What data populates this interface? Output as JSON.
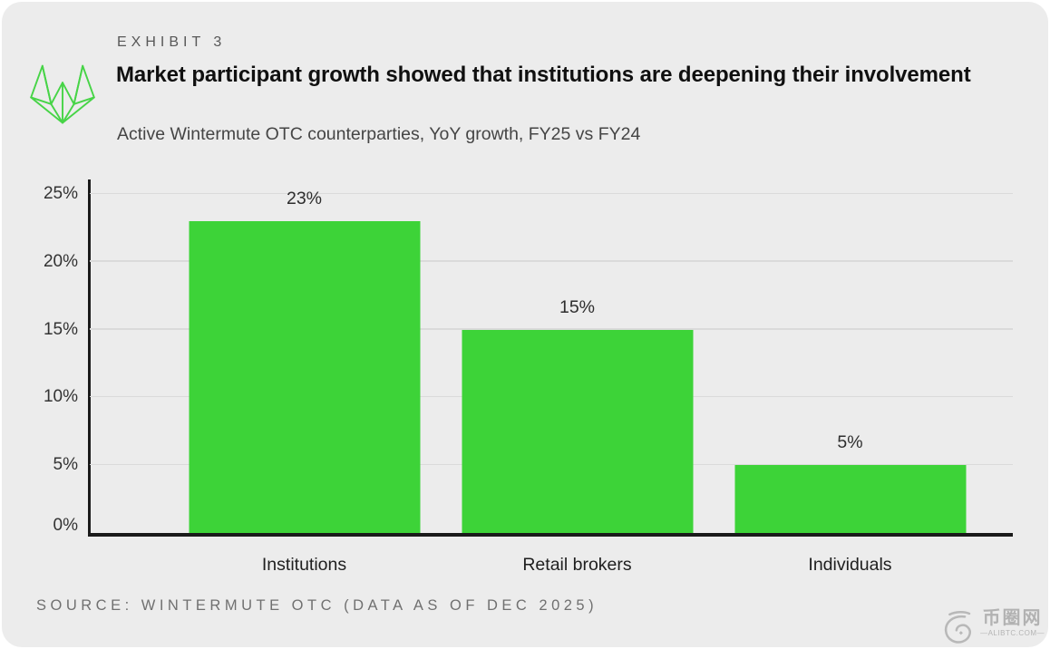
{
  "page": {
    "background": "#ffffff",
    "panel_background": "#ececec"
  },
  "header": {
    "exhibit_label": "EXHIBIT 3",
    "title": "Market participant growth showed that institutions are deepening their involvement",
    "subtitle": "Active Wintermute OTC counterparties, YoY growth, FY25 vs FY24",
    "logo_icon": "wintermute-logo"
  },
  "chart_data": {
    "type": "bar",
    "title": "Market participant growth showed that institutions are deepening their involvement",
    "subtitle": "Active Wintermute OTC counterparties, YoY growth, FY25 vs FY24",
    "categories": [
      "Institutions",
      "Retail brokers",
      "Individuals"
    ],
    "values": [
      23,
      15,
      5
    ],
    "value_labels": [
      "23%",
      "15%",
      "5%"
    ],
    "xlabel": "",
    "ylabel": "",
    "ylim": [
      0,
      25
    ],
    "yticks": [
      0,
      5,
      10,
      15,
      20,
      25
    ],
    "ytick_labels": [
      "0%",
      "5%",
      "10%",
      "15%",
      "20%",
      "25%"
    ],
    "grid": "horizontal",
    "legend": "none",
    "bar_color": "#3dd338",
    "axis_color": "#1a1a1a",
    "gridline_color": "#dadada"
  },
  "footer": {
    "source": "SOURCE: WINTERMUTE OTC (DATA AS OF DEC 2025)"
  },
  "watermark": {
    "site_name": "币圈网",
    "domain": "—ALIBTC.COM—",
    "color": "#a9a9a9"
  },
  "colors": {
    "accent_green": "#3dd338",
    "logo_green": "#47d447",
    "title_text": "#101010",
    "subtitle_text": "#454545",
    "exhibit_text": "#585858",
    "source_text": "#707070"
  }
}
